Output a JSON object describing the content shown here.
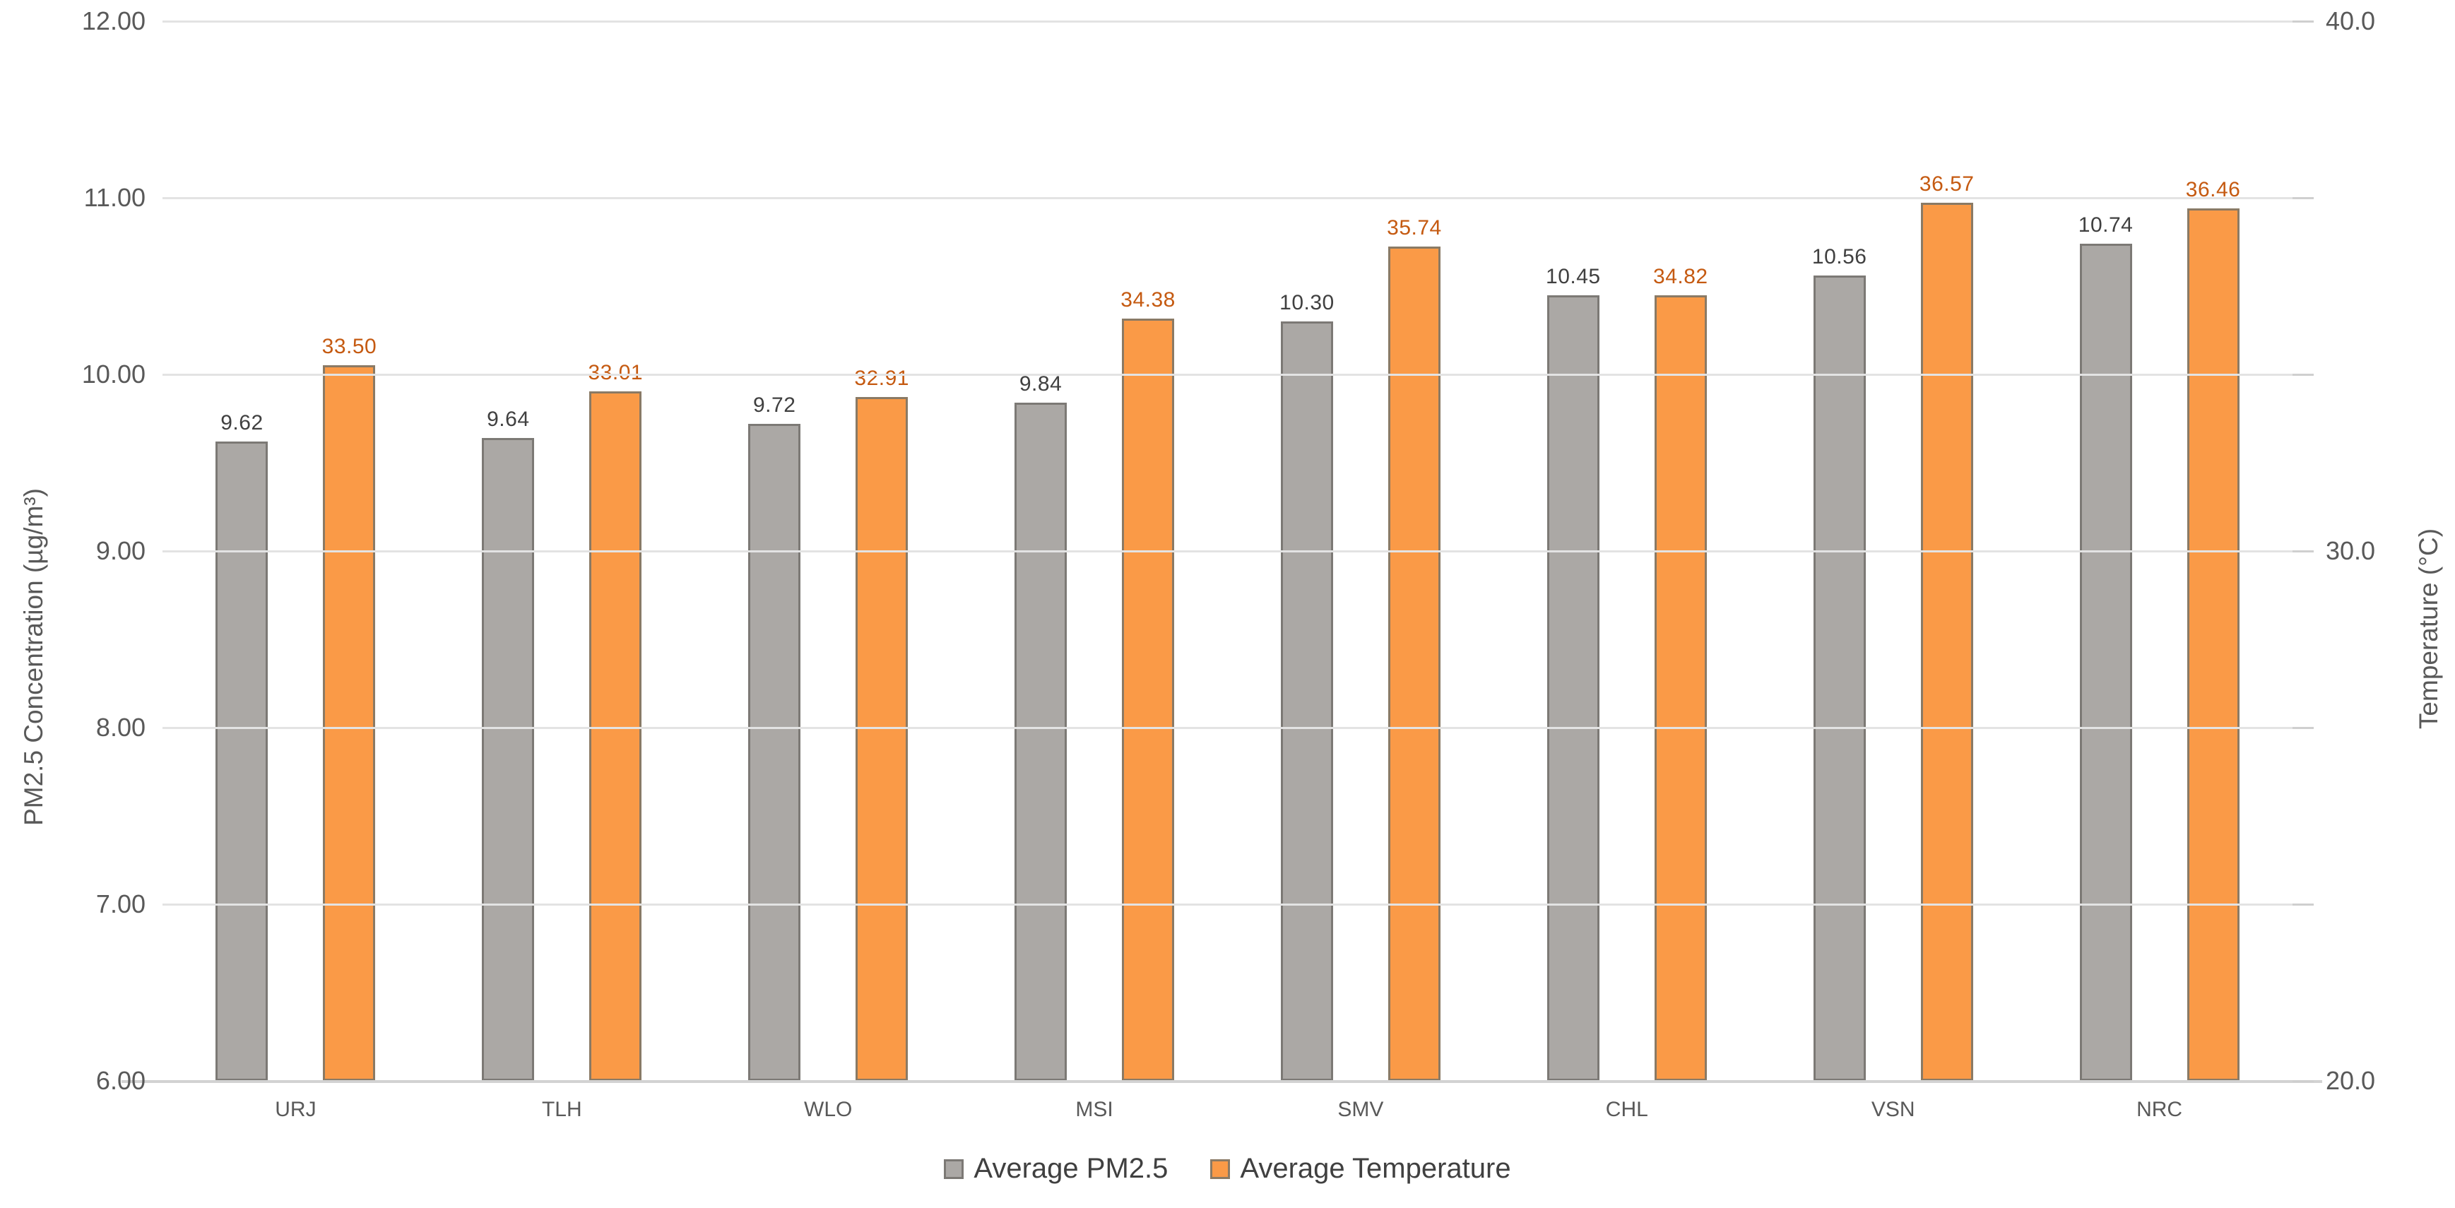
{
  "chart_data": {
    "type": "bar",
    "subtype": "grouped-dual-axis",
    "categories": [
      "URJ",
      "TLH",
      "WLO",
      "MSI",
      "SMV",
      "CHL",
      "VSN",
      "NRC"
    ],
    "series": [
      {
        "name": "Average PM2.5",
        "axis": "left",
        "fill_color": "#aba8a5",
        "border_color": "#7c7975",
        "label_color": "#404040",
        "values": [
          9.62,
          9.64,
          9.72,
          9.84,
          10.3,
          10.45,
          10.56,
          10.74
        ],
        "labels": [
          "9.62",
          "9.64",
          "9.72",
          "9.84",
          "10.30",
          "10.45",
          "10.56",
          "10.74"
        ]
      },
      {
        "name": "Average Temperature",
        "axis": "right",
        "fill_color": "#fa9a47",
        "border_color": "#8a7a65",
        "label_color": "#c55a11",
        "values": [
          33.5,
          33.01,
          32.91,
          34.38,
          35.74,
          34.82,
          36.57,
          36.46
        ],
        "labels": [
          "33.50",
          "33.01",
          "32.91",
          "34.38",
          "35.74",
          "34.82",
          "36.57",
          "36.46"
        ]
      }
    ],
    "left_axis": {
      "title": "PM2.5 Concentration (µg/m³)",
      "min": 6,
      "max": 12,
      "tick_labels": [
        "12.00",
        "11.00",
        "10.00",
        "9.00",
        "8.00",
        "7.00",
        "6.00"
      ],
      "tick_values": [
        12,
        11,
        10,
        9,
        8,
        7,
        6
      ]
    },
    "right_axis": {
      "title": "Temperature (°C)",
      "min": 20,
      "max": 40,
      "tick_labels": [
        "40.0",
        "30.0",
        "20.0"
      ],
      "tick_values": [
        40,
        30,
        20
      ]
    },
    "grid": true,
    "grid_color": "#e3e3e3",
    "baseline_color": "#d2d2d2",
    "tick_text_color": "#595959",
    "legend_text_color": "#404040",
    "legend_position": "bottom",
    "background_color": "#ffffff"
  }
}
